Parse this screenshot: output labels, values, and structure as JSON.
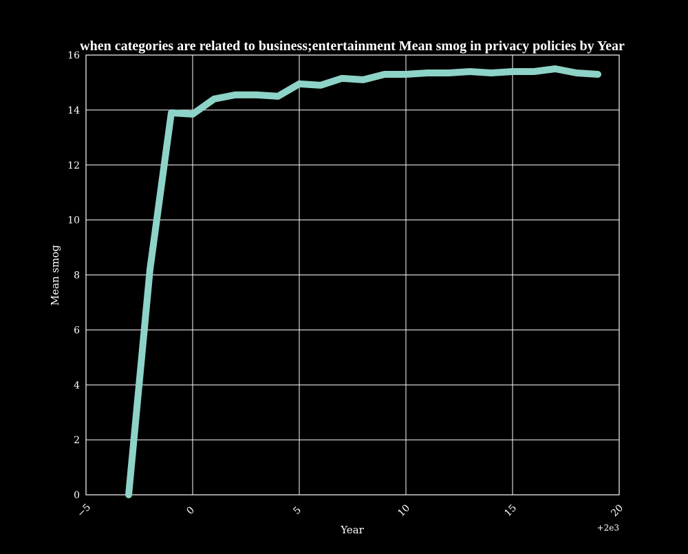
{
  "chart_data": {
    "type": "line",
    "title": "when categories are related to business;entertainment Mean smog in privacy policies by Year",
    "xlabel": "Year",
    "ylabel": "Mean smog",
    "x_offset_label": "+2e3",
    "xlim": [
      1995,
      2020
    ],
    "ylim": [
      0,
      16
    ],
    "x_ticks": [
      1995,
      2000,
      2005,
      2010,
      2015,
      2020
    ],
    "x_tick_labels": [
      "−5",
      "0",
      "5",
      "10",
      "15",
      "20"
    ],
    "y_ticks": [
      0,
      2,
      4,
      6,
      8,
      10,
      12,
      14,
      16
    ],
    "y_tick_labels": [
      "0",
      "2",
      "4",
      "6",
      "8",
      "10",
      "12",
      "14",
      "16"
    ],
    "grid": true,
    "series": [
      {
        "color": "#8dd3c7",
        "x": [
          1997,
          1998,
          1999,
          2000,
          2001,
          2002,
          2003,
          2004,
          2005,
          2006,
          2007,
          2008,
          2009,
          2010,
          2011,
          2012,
          2013,
          2014,
          2015,
          2016,
          2017,
          2018,
          2019
        ],
        "y": [
          0.0,
          8.2,
          13.9,
          13.85,
          14.4,
          14.55,
          14.55,
          14.5,
          14.95,
          14.9,
          15.15,
          15.1,
          15.3,
          15.3,
          15.35,
          15.35,
          15.4,
          15.35,
          15.4,
          15.4,
          15.5,
          15.35,
          15.3
        ]
      }
    ]
  }
}
